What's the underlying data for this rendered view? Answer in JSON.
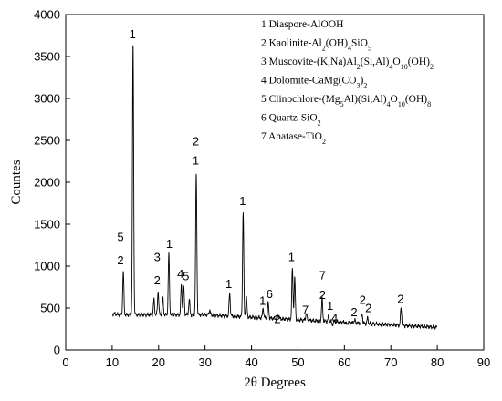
{
  "chart_data": {
    "type": "line",
    "xlabel": "2θ Degrees",
    "ylabel": "Countes",
    "xlim": [
      0,
      90
    ],
    "ylim": [
      0,
      4000
    ],
    "xticks": [
      0,
      10,
      20,
      30,
      40,
      50,
      60,
      70,
      80,
      90
    ],
    "yticks": [
      0,
      500,
      1000,
      1500,
      2000,
      2500,
      3000,
      3500,
      4000
    ],
    "grid": false,
    "legend_position": "top-right",
    "legend": [
      {
        "number": "1",
        "name": "Diaspore-",
        "formula": [
          [
            "AlOOH",
            "n"
          ]
        ]
      },
      {
        "number": "2",
        "name": "Kaolinite-",
        "formula": [
          [
            "Al",
            "n"
          ],
          [
            "2",
            "sub"
          ],
          [
            "(OH)",
            "n"
          ],
          [
            "4",
            "sub"
          ],
          [
            "SiO",
            "n"
          ],
          [
            "5",
            "sub"
          ]
        ]
      },
      {
        "number": "3",
        "name": "Muscovite-",
        "formula": [
          [
            "(K,Na)Al",
            "n"
          ],
          [
            "2",
            "sub"
          ],
          [
            "(Si,Al)",
            "n"
          ],
          [
            "4",
            "sub"
          ],
          [
            "O",
            "n"
          ],
          [
            "10",
            "sub"
          ],
          [
            "(OH)",
            "n"
          ],
          [
            "2",
            "sub"
          ]
        ]
      },
      {
        "number": "4",
        "name": "Dolomite-",
        "formula": [
          [
            "CaMg(CO",
            "n"
          ],
          [
            "3",
            "sub"
          ],
          [
            ")",
            "n"
          ],
          [
            "2",
            "sub"
          ]
        ]
      },
      {
        "number": "5",
        "name": "Clinochlore-",
        "formula": [
          [
            "(Mg",
            "n"
          ],
          [
            "5",
            "sub"
          ],
          [
            "Al)(Si,Al)",
            "n"
          ],
          [
            "4",
            "sub"
          ],
          [
            "O",
            "n"
          ],
          [
            "10",
            "sub"
          ],
          [
            "(OH)",
            "n"
          ],
          [
            "8",
            "sub"
          ]
        ]
      },
      {
        "number": "6",
        "name": "Quartz-",
        "formula": [
          [
            "SiO",
            "n"
          ],
          [
            "2",
            "sub"
          ]
        ]
      },
      {
        "number": "7",
        "name": "Anatase-",
        "formula": [
          [
            "TiO",
            "n"
          ],
          [
            "2",
            "sub"
          ]
        ]
      }
    ],
    "background": 420,
    "peaks": [
      {
        "x": 12.4,
        "y": 930
      },
      {
        "x": 14.5,
        "y": 3650
      },
      {
        "x": 19.0,
        "y": 600
      },
      {
        "x": 19.9,
        "y": 700
      },
      {
        "x": 20.9,
        "y": 620
      },
      {
        "x": 22.2,
        "y": 1150
      },
      {
        "x": 24.9,
        "y": 780
      },
      {
        "x": 25.4,
        "y": 760
      },
      {
        "x": 26.6,
        "y": 600
      },
      {
        "x": 28.1,
        "y": 2100
      },
      {
        "x": 31.0,
        "y": 480
      },
      {
        "x": 35.3,
        "y": 680
      },
      {
        "x": 38.2,
        "y": 1650
      },
      {
        "x": 38.9,
        "y": 620
      },
      {
        "x": 42.5,
        "y": 500
      },
      {
        "x": 43.6,
        "y": 560
      },
      {
        "x": 45.8,
        "y": 420
      },
      {
        "x": 48.8,
        "y": 970
      },
      {
        "x": 49.3,
        "y": 860
      },
      {
        "x": 51.8,
        "y": 440
      },
      {
        "x": 55.2,
        "y": 610
      },
      {
        "x": 56.6,
        "y": 400
      },
      {
        "x": 57.4,
        "y": 300
      },
      {
        "x": 60.5,
        "y": 310
      },
      {
        "x": 62.2,
        "y": 360
      },
      {
        "x": 63.8,
        "y": 430
      },
      {
        "x": 65.0,
        "y": 380
      },
      {
        "x": 67.6,
        "y": 300
      },
      {
        "x": 72.2,
        "y": 500
      }
    ],
    "peak_labels": [
      {
        "x": 11.8,
        "y": 1020,
        "text": "2"
      },
      {
        "x": 11.8,
        "y": 1300,
        "text": "5"
      },
      {
        "x": 14.4,
        "y": 3720,
        "text": "1"
      },
      {
        "x": 19.7,
        "y": 780,
        "text": "2"
      },
      {
        "x": 19.7,
        "y": 1060,
        "text": "3"
      },
      {
        "x": 22.3,
        "y": 1220,
        "text": "1"
      },
      {
        "x": 24.7,
        "y": 860,
        "text": "4"
      },
      {
        "x": 25.9,
        "y": 830,
        "text": "5"
      },
      {
        "x": 28.0,
        "y": 2210,
        "text": "1"
      },
      {
        "x": 28.0,
        "y": 2440,
        "text": "2"
      },
      {
        "x": 35.1,
        "y": 740,
        "text": "1"
      },
      {
        "x": 38.1,
        "y": 1730,
        "text": "1"
      },
      {
        "x": 42.4,
        "y": 540,
        "text": "1"
      },
      {
        "x": 43.9,
        "y": 620,
        "text": "6"
      },
      {
        "x": 45.6,
        "y": 320,
        "text": "2"
      },
      {
        "x": 48.6,
        "y": 1060,
        "text": "1"
      },
      {
        "x": 51.6,
        "y": 430,
        "text": "7"
      },
      {
        "x": 55.3,
        "y": 610,
        "text": "2"
      },
      {
        "x": 55.3,
        "y": 840,
        "text": "7"
      },
      {
        "x": 56.9,
        "y": 480,
        "text": "1"
      },
      {
        "x": 57.9,
        "y": 330,
        "text": "4"
      },
      {
        "x": 62.1,
        "y": 400,
        "text": "2"
      },
      {
        "x": 63.9,
        "y": 550,
        "text": "2"
      },
      {
        "x": 65.2,
        "y": 450,
        "text": "2"
      },
      {
        "x": 72.1,
        "y": 560,
        "text": "2"
      }
    ]
  }
}
